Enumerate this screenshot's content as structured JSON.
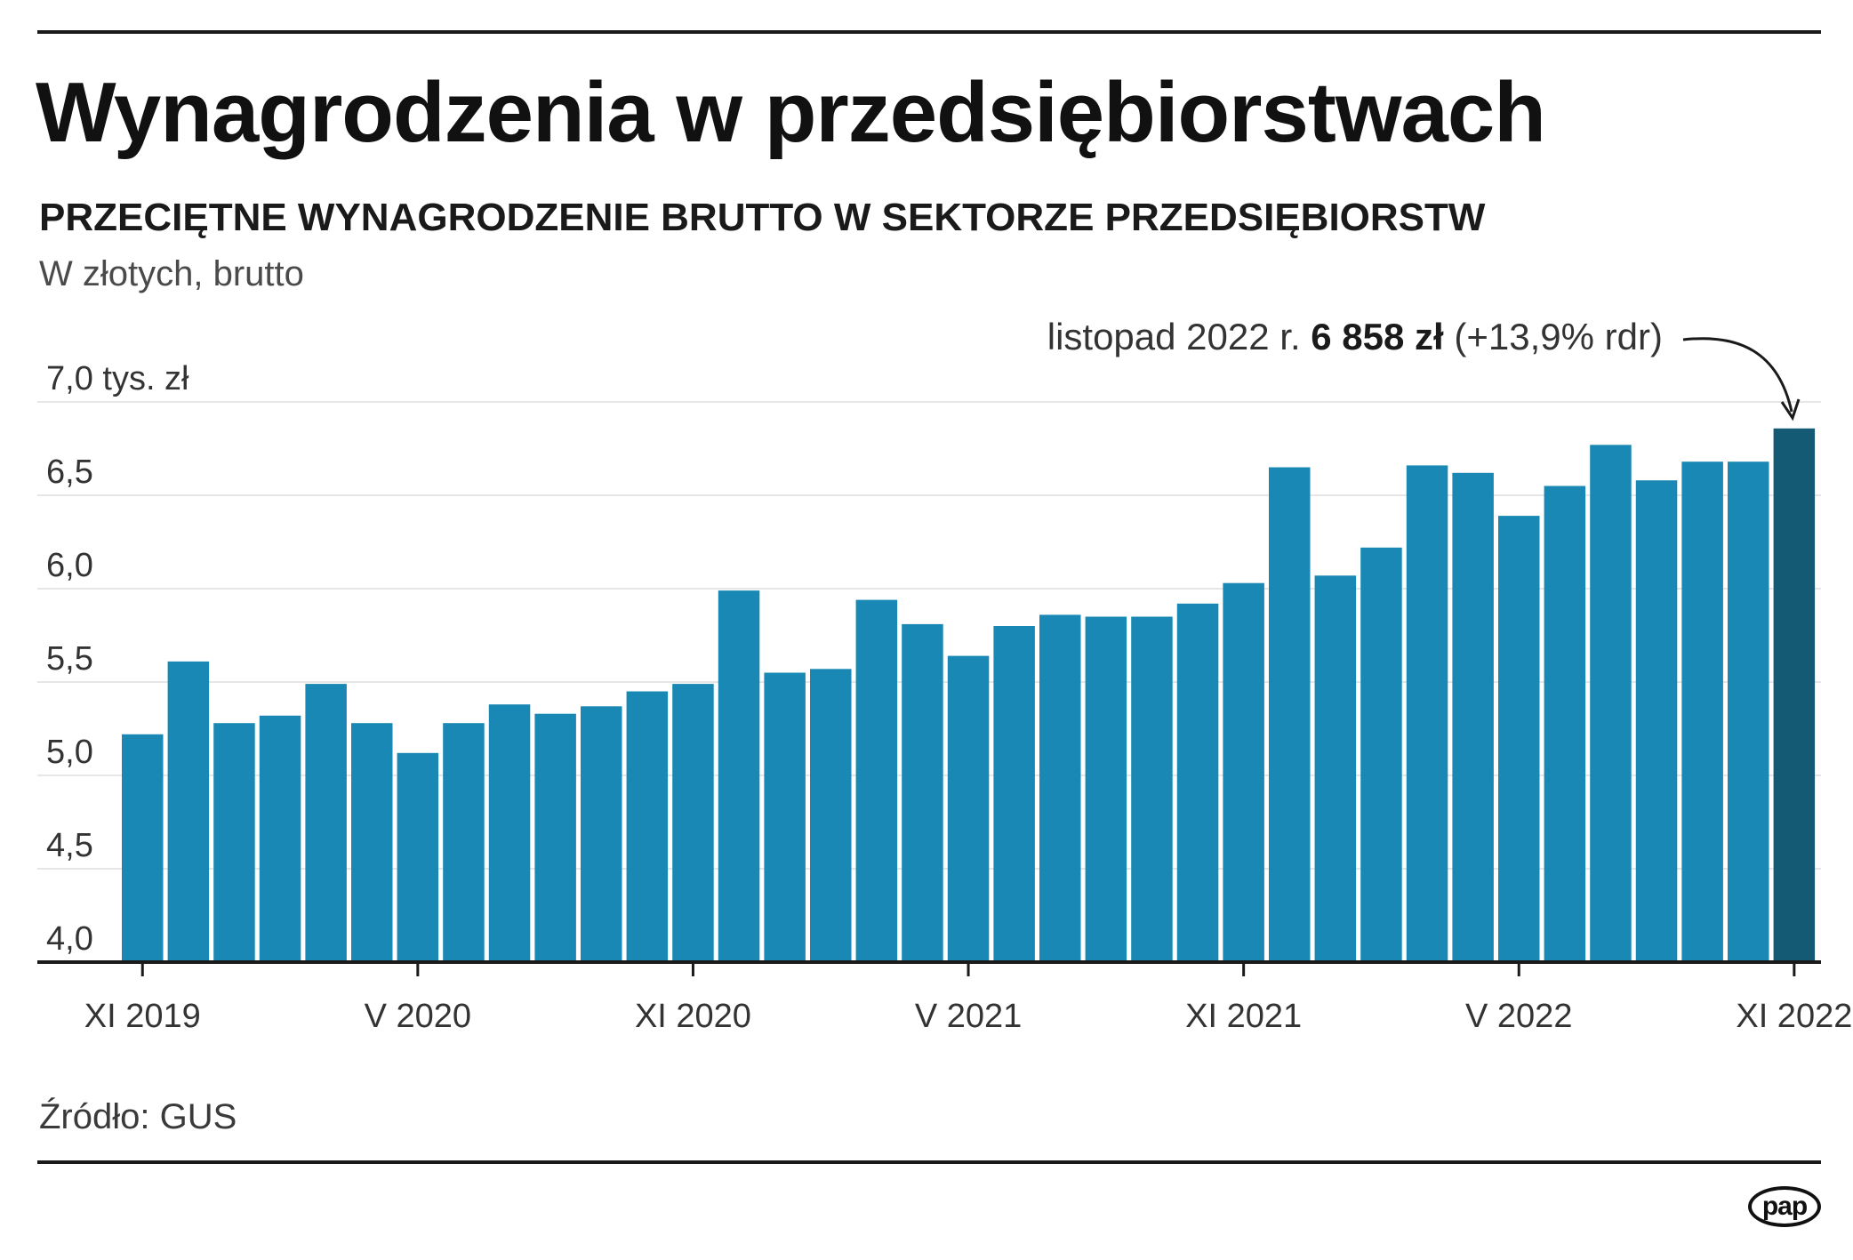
{
  "title": "Wynagrodzenia w przedsiębiorstwach",
  "subtitle": "PRZECIĘTNE WYNAGRODZENIE BRUTTO W SEKTORZE PRZEDSIĘBIORSTW",
  "unit_note": "W złotych, brutto",
  "source": "Źródło: GUS",
  "logo": "pap",
  "colors": {
    "bar": "#1a88b4",
    "bar_highlight": "#155a74",
    "grid": "#e6e6e6",
    "axis": "#1a1a1a"
  },
  "annotation": {
    "prefix": "listopad 2022 r. ",
    "value": "6 858 zł",
    "suffix": " (+13,9% rdr)"
  },
  "chart_data": {
    "type": "bar",
    "ylim": [
      4.0,
      7.0
    ],
    "ytick_labels": [
      "7,0 tys. zł",
      "6,5",
      "6,0",
      "5,5",
      "5,0",
      "4,5",
      "4,0"
    ],
    "ytick_values": [
      7.0,
      6.5,
      6.0,
      5.5,
      5.0,
      4.5,
      4.0
    ],
    "grid": true,
    "xtick_labels": [
      "XI 2019",
      "V 2020",
      "XI 2020",
      "V 2021",
      "XI 2021",
      "V 2022",
      "XI 2022"
    ],
    "xtick_indices": [
      0,
      6,
      12,
      18,
      24,
      30,
      36
    ],
    "values": [
      5.22,
      5.61,
      5.28,
      5.32,
      5.49,
      5.28,
      5.12,
      5.28,
      5.38,
      5.33,
      5.37,
      5.45,
      5.49,
      5.99,
      5.55,
      5.57,
      5.94,
      5.81,
      5.64,
      5.8,
      5.86,
      5.85,
      5.85,
      5.92,
      6.03,
      6.65,
      6.07,
      6.22,
      6.66,
      6.62,
      6.39,
      6.55,
      6.77,
      6.58,
      6.68,
      6.68,
      6.858
    ],
    "highlight_index": 36
  }
}
